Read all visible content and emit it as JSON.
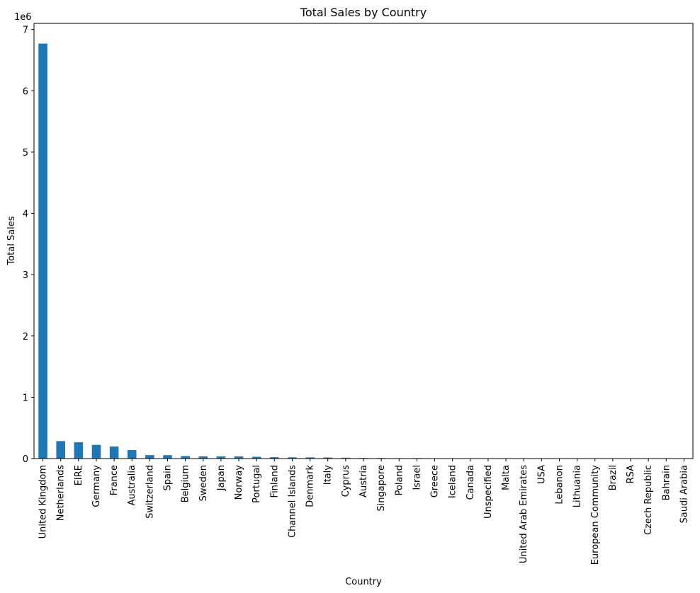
{
  "chart_data": {
    "type": "bar",
    "title": "Total Sales by Country",
    "xlabel": "Country",
    "ylabel": "Total Sales",
    "y_offset_label": "1e6",
    "ylim": [
      0,
      7.1
    ],
    "y_ticks": [
      "0",
      "1",
      "2",
      "3",
      "4",
      "5",
      "6",
      "7"
    ],
    "grid": false,
    "bar_color": "#1f77b4",
    "categories": [
      "United Kingdom",
      "Netherlands",
      "EIRE",
      "Germany",
      "France",
      "Australia",
      "Switzerland",
      "Spain",
      "Belgium",
      "Sweden",
      "Japan",
      "Norway",
      "Portugal",
      "Finland",
      "Channel Islands",
      "Denmark",
      "Italy",
      "Cyprus",
      "Austria",
      "Singapore",
      "Poland",
      "Israel",
      "Greece",
      "Iceland",
      "Canada",
      "Unspecified",
      "Malta",
      "United Arab Emirates",
      "USA",
      "Lebanon",
      "Lithuania",
      "European Community",
      "Brazil",
      "RSA",
      "Czech Republic",
      "Bahrain",
      "Saudi Arabia"
    ],
    "values": [
      6.77,
      0.285,
      0.265,
      0.223,
      0.197,
      0.138,
      0.056,
      0.055,
      0.041,
      0.036,
      0.035,
      0.035,
      0.029,
      0.022,
      0.02,
      0.019,
      0.017,
      0.013,
      0.01,
      0.009,
      0.007,
      0.008,
      0.005,
      0.004,
      0.004,
      0.004,
      0.0025,
      0.0019,
      0.0017,
      0.0017,
      0.0017,
      0.0013,
      0.0011,
      0.001,
      0.0007,
      0.0005,
      0.0001
    ]
  }
}
